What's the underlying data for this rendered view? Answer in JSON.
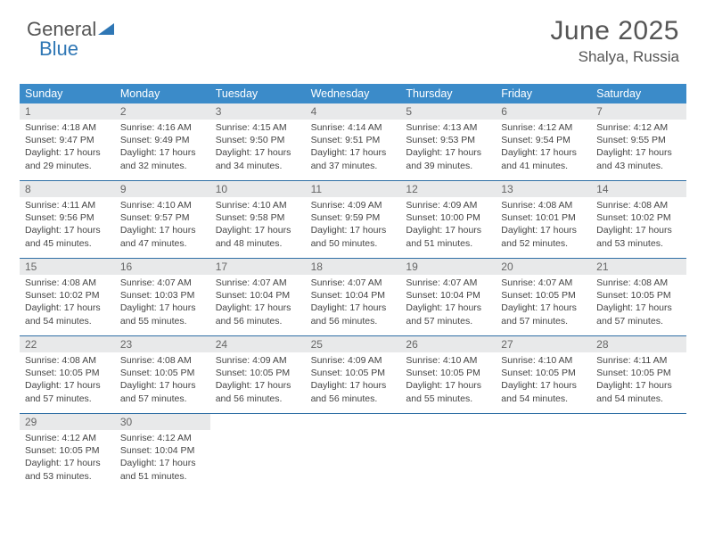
{
  "brand": {
    "part1": "General",
    "part2": "Blue"
  },
  "title": "June 2025",
  "location": "Shalya, Russia",
  "colors": {
    "header_bg": "#3b8bc9",
    "header_text": "#ffffff",
    "day_num_bg": "#e8e9ea",
    "divider": "#2f6fa5",
    "body_text": "#444444",
    "title_text": "#555555"
  },
  "weekdays": [
    "Sunday",
    "Monday",
    "Tuesday",
    "Wednesday",
    "Thursday",
    "Friday",
    "Saturday"
  ],
  "weeks": [
    [
      {
        "n": "1",
        "sr": "4:18 AM",
        "ss": "9:47 PM",
        "dl": "17 hours and 29 minutes."
      },
      {
        "n": "2",
        "sr": "4:16 AM",
        "ss": "9:49 PM",
        "dl": "17 hours and 32 minutes."
      },
      {
        "n": "3",
        "sr": "4:15 AM",
        "ss": "9:50 PM",
        "dl": "17 hours and 34 minutes."
      },
      {
        "n": "4",
        "sr": "4:14 AM",
        "ss": "9:51 PM",
        "dl": "17 hours and 37 minutes."
      },
      {
        "n": "5",
        "sr": "4:13 AM",
        "ss": "9:53 PM",
        "dl": "17 hours and 39 minutes."
      },
      {
        "n": "6",
        "sr": "4:12 AM",
        "ss": "9:54 PM",
        "dl": "17 hours and 41 minutes."
      },
      {
        "n": "7",
        "sr": "4:12 AM",
        "ss": "9:55 PM",
        "dl": "17 hours and 43 minutes."
      }
    ],
    [
      {
        "n": "8",
        "sr": "4:11 AM",
        "ss": "9:56 PM",
        "dl": "17 hours and 45 minutes."
      },
      {
        "n": "9",
        "sr": "4:10 AM",
        "ss": "9:57 PM",
        "dl": "17 hours and 47 minutes."
      },
      {
        "n": "10",
        "sr": "4:10 AM",
        "ss": "9:58 PM",
        "dl": "17 hours and 48 minutes."
      },
      {
        "n": "11",
        "sr": "4:09 AM",
        "ss": "9:59 PM",
        "dl": "17 hours and 50 minutes."
      },
      {
        "n": "12",
        "sr": "4:09 AM",
        "ss": "10:00 PM",
        "dl": "17 hours and 51 minutes."
      },
      {
        "n": "13",
        "sr": "4:08 AM",
        "ss": "10:01 PM",
        "dl": "17 hours and 52 minutes."
      },
      {
        "n": "14",
        "sr": "4:08 AM",
        "ss": "10:02 PM",
        "dl": "17 hours and 53 minutes."
      }
    ],
    [
      {
        "n": "15",
        "sr": "4:08 AM",
        "ss": "10:02 PM",
        "dl": "17 hours and 54 minutes."
      },
      {
        "n": "16",
        "sr": "4:07 AM",
        "ss": "10:03 PM",
        "dl": "17 hours and 55 minutes."
      },
      {
        "n": "17",
        "sr": "4:07 AM",
        "ss": "10:04 PM",
        "dl": "17 hours and 56 minutes."
      },
      {
        "n": "18",
        "sr": "4:07 AM",
        "ss": "10:04 PM",
        "dl": "17 hours and 56 minutes."
      },
      {
        "n": "19",
        "sr": "4:07 AM",
        "ss": "10:04 PM",
        "dl": "17 hours and 57 minutes."
      },
      {
        "n": "20",
        "sr": "4:07 AM",
        "ss": "10:05 PM",
        "dl": "17 hours and 57 minutes."
      },
      {
        "n": "21",
        "sr": "4:08 AM",
        "ss": "10:05 PM",
        "dl": "17 hours and 57 minutes."
      }
    ],
    [
      {
        "n": "22",
        "sr": "4:08 AM",
        "ss": "10:05 PM",
        "dl": "17 hours and 57 minutes."
      },
      {
        "n": "23",
        "sr": "4:08 AM",
        "ss": "10:05 PM",
        "dl": "17 hours and 57 minutes."
      },
      {
        "n": "24",
        "sr": "4:09 AM",
        "ss": "10:05 PM",
        "dl": "17 hours and 56 minutes."
      },
      {
        "n": "25",
        "sr": "4:09 AM",
        "ss": "10:05 PM",
        "dl": "17 hours and 56 minutes."
      },
      {
        "n": "26",
        "sr": "4:10 AM",
        "ss": "10:05 PM",
        "dl": "17 hours and 55 minutes."
      },
      {
        "n": "27",
        "sr": "4:10 AM",
        "ss": "10:05 PM",
        "dl": "17 hours and 54 minutes."
      },
      {
        "n": "28",
        "sr": "4:11 AM",
        "ss": "10:05 PM",
        "dl": "17 hours and 54 minutes."
      }
    ],
    [
      {
        "n": "29",
        "sr": "4:12 AM",
        "ss": "10:05 PM",
        "dl": "17 hours and 53 minutes."
      },
      {
        "n": "30",
        "sr": "4:12 AM",
        "ss": "10:04 PM",
        "dl": "17 hours and 51 minutes."
      },
      null,
      null,
      null,
      null,
      null
    ]
  ],
  "labels": {
    "sunrise": "Sunrise: ",
    "sunset": "Sunset: ",
    "daylight": "Daylight: "
  }
}
